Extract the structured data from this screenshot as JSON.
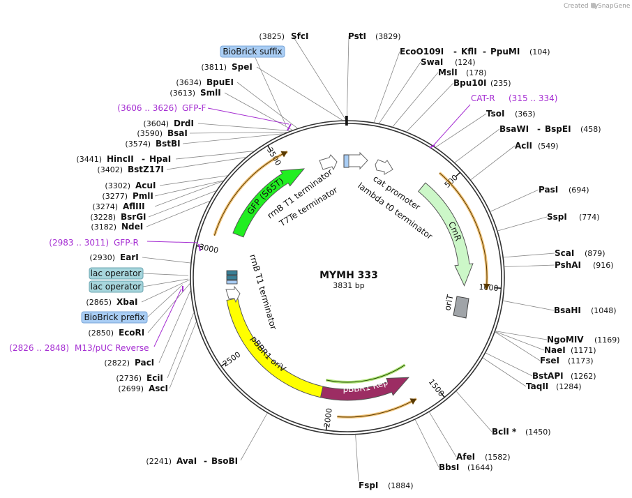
{
  "brand": {
    "created_by": "Created by",
    "name": "SnapGene"
  },
  "plasmid": {
    "name": "MYMH 333",
    "size_label": "3831 bp",
    "length": 3831
  },
  "ticks": [
    {
      "pos": 500,
      "label": "500"
    },
    {
      "pos": 1000,
      "label": "1000"
    },
    {
      "pos": 1500,
      "label": "1500"
    },
    {
      "pos": 2000,
      "label": "2000"
    },
    {
      "pos": 2500,
      "label": "2500"
    },
    {
      "pos": 3000,
      "label": "3000"
    },
    {
      "pos": 3500,
      "label": "3500"
    }
  ],
  "features": [
    {
      "name": "GFP (S65T)",
      "start": 3100,
      "end": 3600,
      "dir": 1,
      "color": "#21ee21",
      "text_color": "#111111"
    },
    {
      "name": "CmR",
      "start": 420,
      "end": 1000,
      "dir": 1,
      "color": "#ccf7c8",
      "text_color": "#111111"
    },
    {
      "name": "pBBR1 Rep",
      "start": 1580,
      "end": 2050,
      "dir": -1,
      "color": "#9c2d63",
      "text_color": "#ffffff"
    },
    {
      "name": "pBBR1 oriV",
      "start": 2050,
      "end": 2760,
      "dir": 0,
      "color": "#ffff00",
      "text_color": "#111111"
    }
  ],
  "orange_arcs": [
    {
      "start": 3060,
      "end": 3560,
      "dir": 1
    },
    {
      "start": 440,
      "end": 1010,
      "dir": 1
    },
    {
      "start": 1600,
      "end": 1960,
      "dir": -1
    }
  ],
  "inner_labels": [
    {
      "text": "rrnB T1 terminator"
    },
    {
      "text": "T7Te terminator"
    },
    {
      "text": "cat promoter"
    },
    {
      "text": "lambda t0 terminator"
    },
    {
      "text": "rrnB T1 terminator"
    },
    {
      "text": "oriT"
    }
  ],
  "enzymes": [
    {
      "name": "SfcI",
      "pos": "(3825)"
    },
    {
      "name": "PstI",
      "pos": "(3829)"
    },
    {
      "name": "EcoO109I",
      "name2": "KflI",
      "name3": "PpuMI",
      "pos": "(104)"
    },
    {
      "name": "SwaI",
      "pos": "(124)"
    },
    {
      "name": "MslI",
      "pos": "(178)"
    },
    {
      "name": "Bpu10I",
      "pos": "(235)"
    },
    {
      "name": "TsoI",
      "pos": "(363)"
    },
    {
      "name": "BsaWI",
      "name2": "BspEI",
      "pos": "(458)"
    },
    {
      "name": "AclI",
      "pos": "(549)"
    },
    {
      "name": "PasI",
      "pos": "(694)"
    },
    {
      "name": "SspI",
      "pos": "(774)"
    },
    {
      "name": "ScaI",
      "pos": "(879)"
    },
    {
      "name": "PshAI",
      "pos": "(916)"
    },
    {
      "name": "BsaHI",
      "pos": "(1048)"
    },
    {
      "name": "NgoMIV",
      "pos": "(1169)"
    },
    {
      "name": "NaeI",
      "pos": "(1171)"
    },
    {
      "name": "FseI",
      "pos": "(1173)"
    },
    {
      "name": "BstAPI",
      "pos": "(1262)"
    },
    {
      "name": "TaqII",
      "pos": "(1284)"
    },
    {
      "name": "BclI *",
      "pos": "(1450)"
    },
    {
      "name": "AfeI",
      "pos": "(1582)"
    },
    {
      "name": "BbsI",
      "pos": "(1644)"
    },
    {
      "name": "FspI",
      "pos": "(1884)"
    },
    {
      "name": "AvaI",
      "name2": "BsoBI",
      "pos": "(2241)"
    },
    {
      "name": "AscI",
      "pos": "(2699)"
    },
    {
      "name": "EciI",
      "pos": "(2736)"
    },
    {
      "name": "PacI",
      "pos": "(2822)"
    },
    {
      "name": "EcoRI",
      "pos": "(2850)"
    },
    {
      "name": "XbaI",
      "pos": "(2865)"
    },
    {
      "name": "EarI",
      "pos": "(2930)"
    },
    {
      "name": "NdeI",
      "pos": "(3182)"
    },
    {
      "name": "BsrGI",
      "pos": "(3228)"
    },
    {
      "name": "AflIII",
      "pos": "(3274)"
    },
    {
      "name": "PmlI",
      "pos": "(3277)"
    },
    {
      "name": "AcuI",
      "pos": "(3302)"
    },
    {
      "name": "BstZ17I",
      "pos": "(3402)"
    },
    {
      "name": "HincII",
      "name2": "HpaI",
      "pos": "(3441)"
    },
    {
      "name": "BstBI",
      "pos": "(3574)"
    },
    {
      "name": "BsaI",
      "pos": "(3590)"
    },
    {
      "name": "DrdI",
      "pos": "(3604)"
    },
    {
      "name": "SmlI",
      "pos": "(3613)"
    },
    {
      "name": "BpuEI",
      "pos": "(3634)"
    },
    {
      "name": "SpeI",
      "pos": "(3811)"
    }
  ],
  "primers": [
    {
      "name": "CAT-R",
      "range": "(315 .. 334)"
    },
    {
      "name": "GFP-F",
      "range": "(3606 .. 3626)"
    },
    {
      "name": "GFP-R",
      "range": "(2983 .. 3011)"
    },
    {
      "name": "M13/pUC Reverse",
      "range": "(2826 .. 2848)"
    }
  ],
  "boxes": [
    {
      "text": "BioBrick suffix",
      "color": "#a9cdf4",
      "stroke": "#7aa6d8"
    },
    {
      "text": "lac operator",
      "color": "#a7d6dd",
      "stroke": "#6aa4b0"
    },
    {
      "text": "lac operator",
      "color": "#a7d6dd",
      "stroke": "#6aa4b0"
    },
    {
      "text": "BioBrick prefix",
      "color": "#a9cdf4",
      "stroke": "#7aa6d8"
    }
  ],
  "colors": {
    "ring": "#333333",
    "primer": "#a52ed2",
    "orange": "#e8960e",
    "line": "#888888"
  }
}
